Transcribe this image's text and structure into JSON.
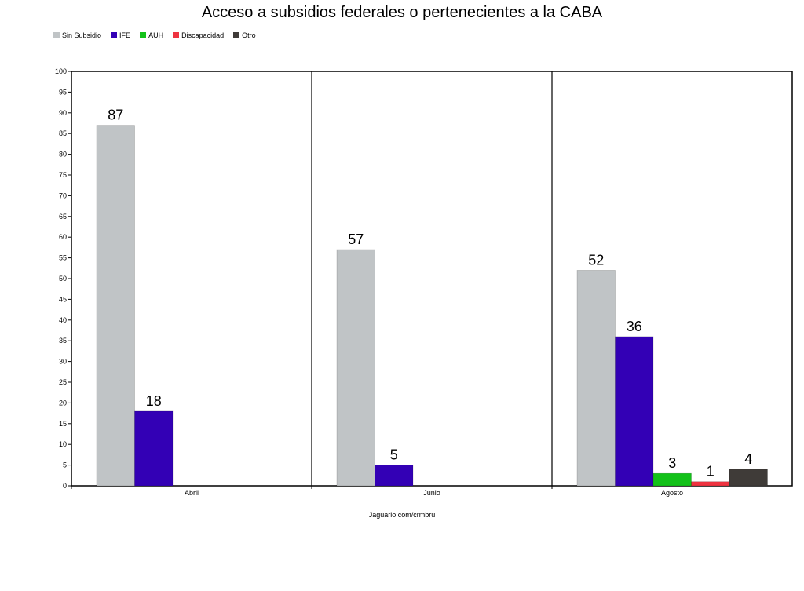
{
  "title": "Acceso a subsidios federales o pertenecientes a la CABA",
  "caption": "Jaguario.com/crmbru",
  "colors": {
    "Sin Subsidio": "#c0c4c6",
    "IFE": "#3300b5",
    "AUH": "#13c119",
    "Discapacidad": "#ee3340",
    "Otro": "#3f3b38"
  },
  "chart_data": {
    "type": "bar",
    "title": "Acceso a subsidios federales o pertenecientes a la CABA",
    "categories": [
      "Abril",
      "Junio",
      "Agosto"
    ],
    "series": [
      {
        "name": "Sin Subsidio",
        "values": [
          87,
          57,
          52
        ]
      },
      {
        "name": "IFE",
        "values": [
          18,
          5,
          36
        ]
      },
      {
        "name": "AUH",
        "values": [
          null,
          null,
          3
        ]
      },
      {
        "name": "Discapacidad",
        "values": [
          null,
          null,
          1
        ]
      },
      {
        "name": "Otro",
        "values": [
          null,
          null,
          4
        ]
      }
    ],
    "ylim": [
      0,
      100
    ],
    "yticks": [
      0,
      5,
      10,
      15,
      20,
      25,
      30,
      35,
      40,
      45,
      50,
      55,
      60,
      65,
      70,
      75,
      80,
      85,
      90,
      95,
      100
    ],
    "xlabel": "Jaguario.com/crmbru",
    "ylabel": "",
    "grid": false,
    "legend_position": "top-left",
    "data_labels": true
  }
}
